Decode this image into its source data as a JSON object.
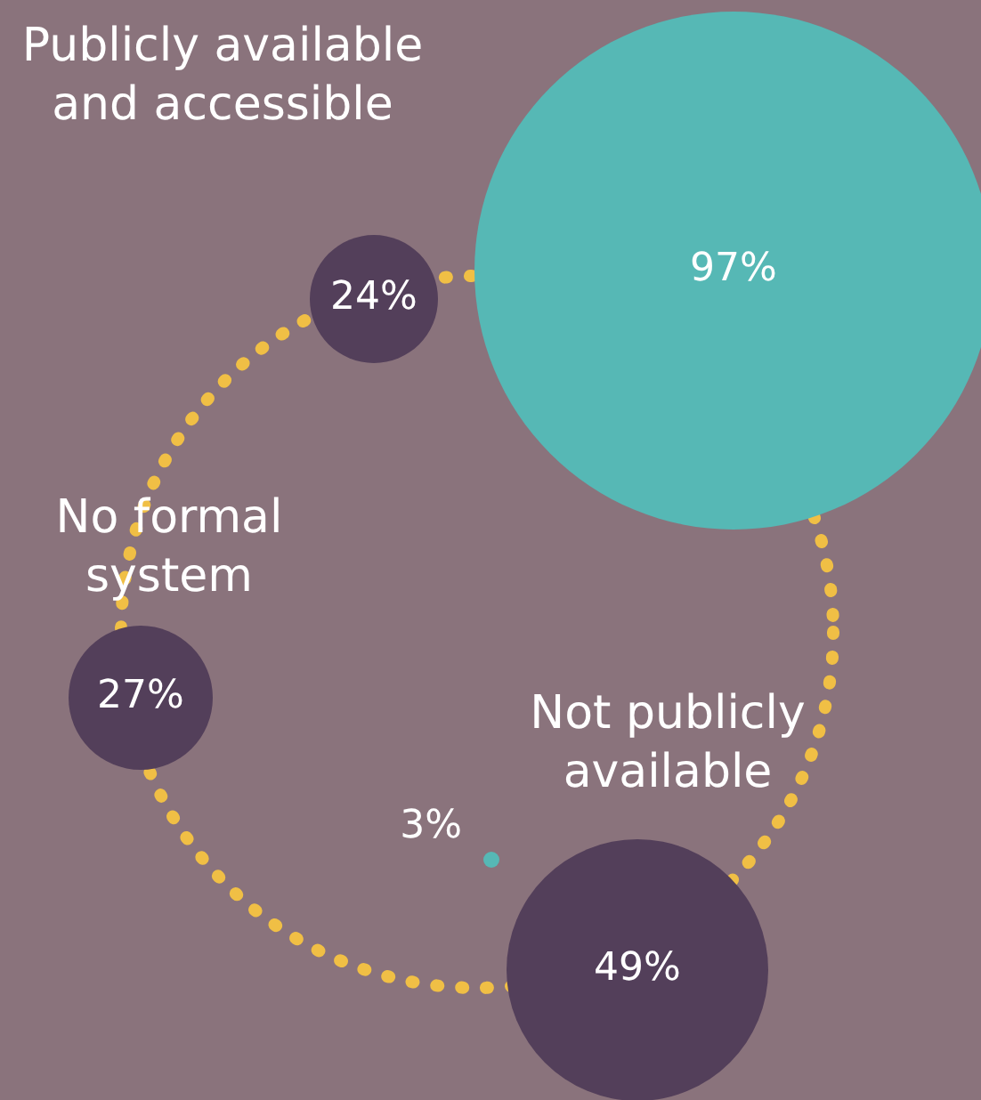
{
  "chart_data": {
    "type": "other",
    "categories": [
      "Publicly available and accessible",
      "No formal system",
      "Not publicly available"
    ],
    "series": [
      {
        "color": "#56b8b5",
        "values": [
          97,
          null,
          3
        ],
        "value_labels": [
          "97%",
          null,
          "3%"
        ]
      },
      {
        "color": "#533f5a",
        "values": [
          24,
          27,
          49
        ],
        "value_labels": [
          "24%",
          "27%",
          "49%"
        ]
      }
    ]
  }
}
